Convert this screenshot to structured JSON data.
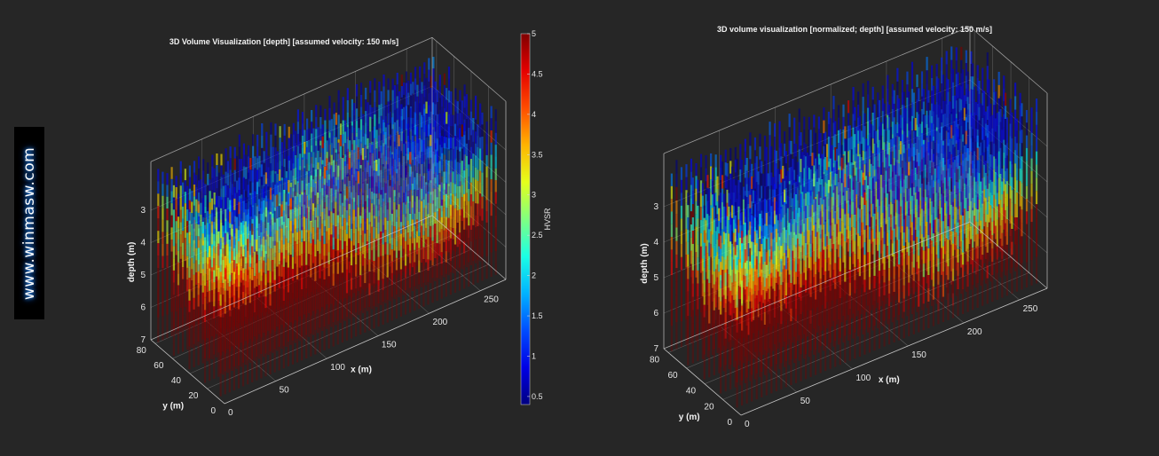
{
  "watermark": "www.winmasw.com",
  "colormap": "jet",
  "chart_data": [
    {
      "type": "volume",
      "title": "3D Volume Visualization [depth] [assumed velocity: 150 m/s]",
      "xlabel": "x (m)",
      "ylabel": "y (m)",
      "zlabel": "depth (m)",
      "xlim": [
        0,
        275
      ],
      "ylim": [
        0,
        85
      ],
      "zlim": [
        1.5,
        7
      ],
      "z_reversed": true,
      "xticks": [
        "0",
        "50",
        "100",
        "150",
        "200",
        "250"
      ],
      "yticks": [
        "0",
        "20",
        "40",
        "60",
        "80"
      ],
      "zticks": [
        "3",
        "4",
        "5",
        "6",
        "7"
      ],
      "colorbar": {
        "label": "HVSR",
        "range": [
          0.4,
          5
        ],
        "ticks": [
          "0.5",
          "1",
          "1.5",
          "2",
          "2.5",
          "3",
          "3.5",
          "4",
          "4.5",
          "5"
        ]
      },
      "description_of_values": {
        "shallow": "low HVSR (~0.5-1.5)",
        "deep": "high HVSR (~3.5-5) below ~4 m"
      }
    },
    {
      "type": "volume",
      "title": "3D volume visualization [normalized; depth] [assumed velocity: 150 m/s]",
      "xlabel": "x (m)",
      "ylabel": "y (m)",
      "zlabel": "depth (m)",
      "xlim": [
        0,
        275
      ],
      "ylim": [
        0,
        85
      ],
      "zlim": [
        1.5,
        7
      ],
      "z_reversed": true,
      "xticks": [
        "0",
        "50",
        "100",
        "150",
        "200",
        "250"
      ],
      "yticks": [
        "0",
        "20",
        "40",
        "60",
        "80"
      ],
      "zticks": [
        "3",
        "4",
        "5",
        "6",
        "7"
      ]
    }
  ]
}
